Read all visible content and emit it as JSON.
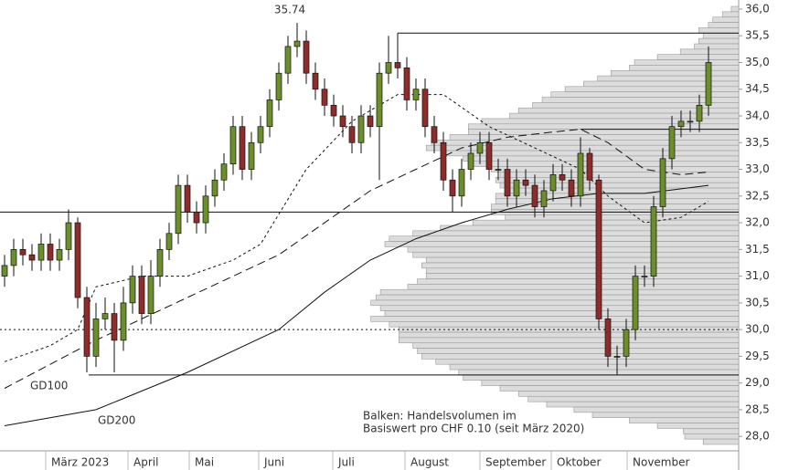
{
  "chart_data": {
    "type": "candlestick",
    "open": [
      31.0,
      31.2,
      31.5,
      31.4,
      31.3,
      31.6,
      31.3,
      31.5,
      32.0,
      30.6,
      29.5,
      30.2,
      30.3,
      29.8,
      30.5,
      31.0,
      30.3,
      31.0,
      31.5,
      31.8,
      32.7,
      32.2,
      32.0,
      32.5,
      32.8,
      33.1,
      33.8,
      33.0,
      33.5,
      33.8,
      34.3,
      34.8,
      35.3,
      35.4,
      34.8,
      34.5,
      34.2,
      34.0,
      33.8,
      33.5,
      34.0,
      33.8,
      34.8,
      35.0,
      34.9,
      34.3,
      34.5,
      33.8,
      33.5,
      32.8,
      32.5,
      33.0,
      33.3,
      33.5,
      33.0,
      33.0,
      32.5,
      32.8,
      32.7,
      32.3,
      32.6,
      32.9,
      32.8,
      32.5,
      33.3,
      32.8,
      30.2,
      29.5,
      29.5,
      30.0,
      31.0,
      31.0,
      32.3,
      33.2,
      33.8,
      33.9,
      33.9,
      34.2
    ],
    "high": [
      31.4,
      31.7,
      31.7,
      31.6,
      31.8,
      31.8,
      31.7,
      32.25,
      32.1,
      30.8,
      30.5,
      30.6,
      30.5,
      30.8,
      31.2,
      31.2,
      31.3,
      31.7,
      32.0,
      32.9,
      32.9,
      32.4,
      32.7,
      33.0,
      33.3,
      34.0,
      34.0,
      33.7,
      34.0,
      34.5,
      35.0,
      35.5,
      35.74,
      35.6,
      35.0,
      34.7,
      34.4,
      34.2,
      34.0,
      34.2,
      34.2,
      35.0,
      35.5,
      35.55,
      35.1,
      34.7,
      34.7,
      34.0,
      33.7,
      33.0,
      33.2,
      33.5,
      33.7,
      33.7,
      33.2,
      33.2,
      33.0,
      33.0,
      32.9,
      32.8,
      33.1,
      33.1,
      33.0,
      33.6,
      33.4,
      32.9,
      30.4,
      29.7,
      30.2,
      31.2,
      31.2,
      32.5,
      33.4,
      34.0,
      34.1,
      34.1,
      34.4,
      35.3
    ],
    "low": [
      30.8,
      31.0,
      31.2,
      31.1,
      31.1,
      31.1,
      31.1,
      31.3,
      30.4,
      29.2,
      29.3,
      30.0,
      29.2,
      29.6,
      30.3,
      30.1,
      30.1,
      30.8,
      31.3,
      31.6,
      32.0,
      31.8,
      31.8,
      32.3,
      32.6,
      32.9,
      32.8,
      32.8,
      33.3,
      33.6,
      34.1,
      34.6,
      35.1,
      34.6,
      34.3,
      34.0,
      33.8,
      33.6,
      33.3,
      33.3,
      33.6,
      32.8,
      34.6,
      34.7,
      34.1,
      34.1,
      33.6,
      33.3,
      32.6,
      32.2,
      32.3,
      32.8,
      33.1,
      32.8,
      32.8,
      32.3,
      32.3,
      32.5,
      32.1,
      32.1,
      32.4,
      32.6,
      32.3,
      32.3,
      32.6,
      30.0,
      29.3,
      29.15,
      29.3,
      29.8,
      30.8,
      30.8,
      32.1,
      33.0,
      33.6,
      33.7,
      33.7,
      34.0
    ],
    "close": [
      31.2,
      31.5,
      31.4,
      31.3,
      31.6,
      31.3,
      31.5,
      32.0,
      30.6,
      29.5,
      30.2,
      30.3,
      29.8,
      30.5,
      31.0,
      30.3,
      31.0,
      31.5,
      31.8,
      32.7,
      32.2,
      32.0,
      32.5,
      32.8,
      33.1,
      33.8,
      33.0,
      33.5,
      33.8,
      34.3,
      34.8,
      35.3,
      35.4,
      34.8,
      34.5,
      34.2,
      34.0,
      33.8,
      33.5,
      34.0,
      33.8,
      34.8,
      35.0,
      34.9,
      34.3,
      34.5,
      33.8,
      33.5,
      32.8,
      32.5,
      33.0,
      33.3,
      33.5,
      33.0,
      33.0,
      32.5,
      32.8,
      32.7,
      32.3,
      32.6,
      32.9,
      32.8,
      32.5,
      33.3,
      32.8,
      30.2,
      29.5,
      29.5,
      30.0,
      31.0,
      31.0,
      32.3,
      33.2,
      33.8,
      33.9,
      33.9,
      34.2,
      35.0
    ],
    "up_color": "#6b8f2b",
    "down_color": "#8e2c2c",
    "lines": [
      {
        "style": "short-dash",
        "x": [
          0,
          5,
          8,
          10,
          15,
          20,
          25,
          28,
          33,
          38,
          43,
          48,
          53,
          58,
          63,
          66,
          70,
          74,
          77
        ],
        "values": [
          29.4,
          29.7,
          30.0,
          30.8,
          31.0,
          31.0,
          31.3,
          31.6,
          33.0,
          33.9,
          34.4,
          34.4,
          33.8,
          33.4,
          33.0,
          32.5,
          32.0,
          32.1,
          32.4
        ]
      },
      {
        "name": "GD100",
        "style": "long-dash",
        "x": [
          0,
          10,
          20,
          30,
          40,
          45,
          50,
          55,
          60,
          63,
          66,
          70,
          74,
          77
        ],
        "values": [
          28.9,
          29.8,
          30.6,
          31.4,
          32.6,
          33.0,
          33.4,
          33.6,
          33.7,
          33.75,
          33.5,
          33.0,
          32.9,
          32.95
        ]
      },
      {
        "name": "GD200",
        "style": "solid",
        "x": [
          0,
          10,
          20,
          30,
          35,
          40,
          45,
          50,
          55,
          60,
          65,
          70,
          77
        ],
        "values": [
          28.2,
          28.5,
          29.2,
          30.0,
          30.7,
          31.3,
          31.7,
          32.0,
          32.25,
          32.45,
          32.55,
          32.55,
          32.7
        ]
      }
    ],
    "hlines": [
      {
        "value": 35.55,
        "from": 43,
        "style": "solid"
      },
      {
        "value": 33.75,
        "from": 63,
        "style": "solid"
      },
      {
        "value": 32.2,
        "from": -0.5,
        "style": "solid"
      },
      {
        "value": 29.15,
        "from": 9.2,
        "style": "solid"
      },
      {
        "value": 30.0,
        "from": -0.5,
        "style": "dotted"
      }
    ],
    "volume_profile": {
      "color": "#dcdcdc",
      "border": "#9a9a9a",
      "xlim": [
        0,
        100
      ],
      "levels": [
        36.0,
        35.9,
        35.8,
        35.7,
        35.6,
        35.5,
        35.4,
        35.3,
        35.2,
        35.1,
        35.0,
        34.9,
        34.8,
        34.7,
        34.6,
        34.5,
        34.4,
        34.3,
        34.2,
        34.1,
        34.0,
        33.9,
        33.8,
        33.7,
        33.6,
        33.5,
        33.4,
        33.3,
        33.2,
        33.1,
        33.0,
        32.9,
        32.8,
        32.7,
        32.6,
        32.5,
        32.4,
        32.3,
        32.2,
        32.1,
        32.0,
        31.9,
        31.8,
        31.7,
        31.6,
        31.5,
        31.4,
        31.3,
        31.2,
        31.1,
        31.0,
        30.9,
        30.8,
        30.7,
        30.6,
        30.5,
        30.4,
        30.3,
        30.2,
        30.1,
        30.0,
        29.9,
        29.8,
        29.7,
        29.6,
        29.5,
        29.4,
        29.3,
        29.2,
        29.1,
        29.0,
        28.9,
        28.8,
        28.7,
        28.6,
        28.5,
        28.4,
        28.3,
        28.2,
        28.1,
        28.0,
        27.9
      ],
      "values": [
        1,
        2.2,
        3.5,
        4.1,
        5.4,
        4.8,
        5.4,
        6,
        7.9,
        11,
        14.1,
        14.8,
        17.3,
        19.1,
        21,
        23.5,
        25.4,
        26.6,
        27.9,
        29.8,
        31,
        34.8,
        36.6,
        36.6,
        39.1,
        41.6,
        42.3,
        39.8,
        37.3,
        36,
        33.5,
        32.3,
        32.9,
        32.3,
        31.6,
        32.9,
        32.9,
        33.5,
        33.5,
        31.6,
        36,
        40.4,
        44.1,
        47.3,
        47.9,
        44.8,
        44.1,
        42.3,
        42.9,
        42.3,
        42.3,
        43.5,
        44.8,
        48.5,
        49.1,
        49.8,
        48.5,
        47.9,
        49.8,
        47.3,
        46,
        46,
        46,
        44.1,
        43.5,
        42.9,
        41,
        39.1,
        37.9,
        37.3,
        34.8,
        32.3,
        29.8,
        28.5,
        26,
        22.3,
        19.8,
        14.8,
        11,
        7.5,
        7.3,
        4.8
      ]
    },
    "annotations": [
      {
        "text": "35.74",
        "x": 32,
        "y": 35.74
      }
    ],
    "note": [
      "Balken: Handelsvolumen im",
      "Basiswert pro CHF 0.10 (seit März 2020)"
    ],
    "xlim": [
      -0.5,
      80.3
    ],
    "xticks": [
      {
        "value": 4.5,
        "label": "März 2023"
      },
      {
        "value": 13.5,
        "label": "April"
      },
      {
        "value": 20.2,
        "label": "Mai"
      },
      {
        "value": 27.8,
        "label": "Juni"
      },
      {
        "value": 35.9,
        "label": "Juli"
      },
      {
        "value": 43.8,
        "label": "August"
      },
      {
        "value": 52,
        "label": "September"
      },
      {
        "value": 59.8,
        "label": "Oktober"
      },
      {
        "value": 68.1,
        "label": "November"
      }
    ],
    "ylim": [
      27.73,
      36.17
    ],
    "yticks": [
      {
        "value": 28,
        "label": "28,0"
      },
      {
        "value": 28.5,
        "label": "28,5"
      },
      {
        "value": 29,
        "label": "29,0"
      },
      {
        "value": 29.5,
        "label": "29,5"
      },
      {
        "value": 30,
        "label": "30,0"
      },
      {
        "value": 30.5,
        "label": "30,5"
      },
      {
        "value": 31,
        "label": "31,0"
      },
      {
        "value": 31.5,
        "label": "31,5"
      },
      {
        "value": 32,
        "label": "32,0"
      },
      {
        "value": 32.5,
        "label": "32,5"
      },
      {
        "value": 33,
        "label": "33,0"
      },
      {
        "value": 33.5,
        "label": "33,5"
      },
      {
        "value": 34,
        "label": "34,0"
      },
      {
        "value": 34.5,
        "label": "34,5"
      },
      {
        "value": 35,
        "label": "35,0"
      },
      {
        "value": 35.5,
        "label": "35,5"
      },
      {
        "value": 36,
        "label": "36,0"
      }
    ]
  }
}
